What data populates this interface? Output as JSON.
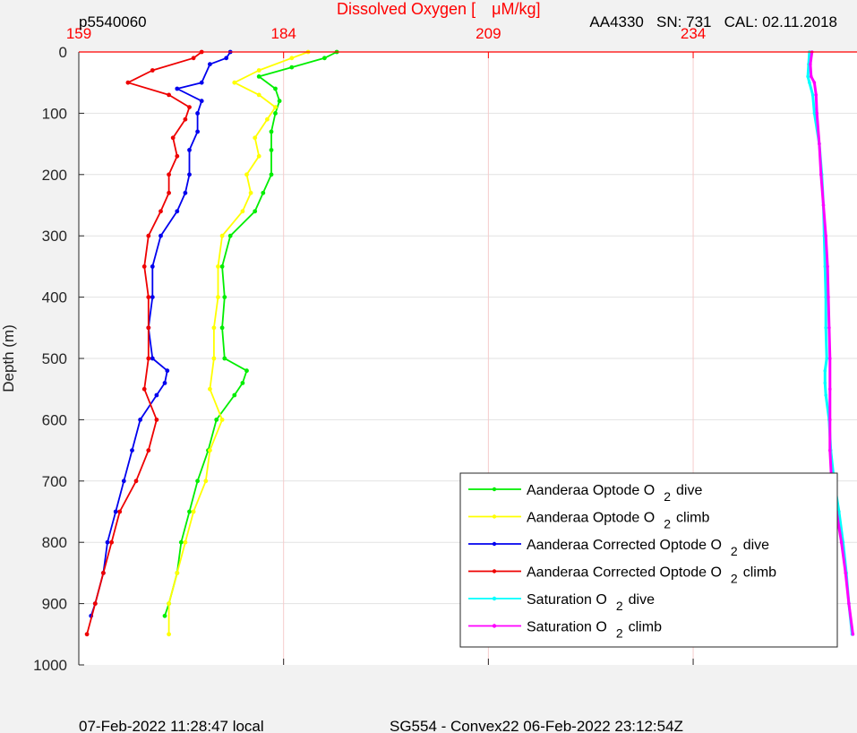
{
  "header": {
    "left_id": "p5540060",
    "title_prefix": "Dissolved Oxygen [",
    "title_units": "μM/kg]",
    "right_info": "AA4330   SN: 731   CAL: 02.11.2018"
  },
  "footer": {
    "left": "07-Feb-2022 11:28:47 local",
    "center": "SG554 - Convex22 06-Feb-2022 23:12:54Z"
  },
  "colors": {
    "oxygen_dive": "#00ee00",
    "oxygen_climb": "#ffff00",
    "corrected_dive": "#0000ee",
    "corrected_climb": "#ee0000",
    "saturation_dive": "#00ffff",
    "saturation_climb": "#ff00ff",
    "top_axis": "#ff0000"
  },
  "chart_data": {
    "type": "line",
    "ylabel": "Depth (m)",
    "y_reversed": true,
    "ylim": [
      0,
      1000
    ],
    "xlim": [
      159,
      254
    ],
    "x_ticks": [
      159,
      184,
      209,
      234
    ],
    "y_ticks": [
      0,
      100,
      200,
      300,
      400,
      500,
      600,
      700,
      800,
      900,
      1000
    ],
    "grid": true,
    "legend_position": "bottom-right",
    "series": [
      {
        "name": "Aanderaa Optode O2 dive",
        "legend_main": "Aanderaa Optode O",
        "legend_sub": "2",
        "legend_tail": "dive",
        "color": "#00ee00",
        "depth": [
          0,
          10,
          25,
          40,
          60,
          80,
          100,
          130,
          160,
          200,
          230,
          260,
          300,
          350,
          400,
          450,
          500,
          520,
          540,
          560,
          600,
          650,
          700,
          750,
          800,
          850,
          900,
          920
        ],
        "values": [
          190.5,
          189,
          185,
          181,
          183,
          183.5,
          183,
          182.5,
          182.5,
          182.5,
          181.5,
          180.5,
          177.5,
          176.5,
          176.8,
          176.5,
          176.8,
          179.5,
          179,
          178,
          175.8,
          174.8,
          173.5,
          172.5,
          171.5,
          171,
          170,
          169.5
        ]
      },
      {
        "name": "Aanderaa Optode O2 climb",
        "legend_main": "Aanderaa Optode O",
        "legend_sub": "2",
        "legend_tail": "climb",
        "color": "#ffff00",
        "depth": [
          0,
          10,
          30,
          50,
          70,
          90,
          110,
          140,
          170,
          200,
          230,
          260,
          300,
          350,
          400,
          450,
          500,
          550,
          600,
          650,
          700,
          750,
          800,
          850,
          900,
          950
        ],
        "values": [
          187,
          185,
          181,
          178,
          181,
          183,
          182,
          180.5,
          181,
          179.5,
          180,
          179,
          176.5,
          176,
          176,
          175.5,
          175.5,
          175,
          176.5,
          175,
          174.5,
          173,
          172,
          171,
          170,
          170
        ]
      },
      {
        "name": "Aanderaa Corrected Optode O2 dive",
        "legend_main": "Aanderaa Corrected Optode O",
        "legend_sub": "2",
        "legend_tail": "dive",
        "color": "#0000ee",
        "depth": [
          0,
          10,
          20,
          50,
          60,
          80,
          100,
          130,
          160,
          200,
          230,
          260,
          300,
          350,
          400,
          450,
          500,
          520,
          540,
          560,
          600,
          650,
          700,
          750,
          800,
          850,
          900,
          920
        ],
        "values": [
          177.5,
          177,
          175,
          174,
          171,
          174,
          173.5,
          173.5,
          172.5,
          172.5,
          172,
          171,
          169,
          168,
          168,
          167.5,
          168,
          169.8,
          169.5,
          168.5,
          166.5,
          165.5,
          164.5,
          163.5,
          162.5,
          162,
          161,
          160.5
        ]
      },
      {
        "name": "Aanderaa Corrected Optode O2 climb",
        "legend_main": "Aanderaa Corrected Optode O",
        "legend_sub": "2",
        "legend_tail": "climb",
        "color": "#ee0000",
        "depth": [
          0,
          10,
          30,
          50,
          70,
          90,
          110,
          140,
          170,
          200,
          230,
          260,
          300,
          350,
          400,
          450,
          500,
          550,
          600,
          650,
          700,
          750,
          800,
          850,
          900,
          950
        ],
        "values": [
          174,
          173,
          168,
          165,
          170,
          172.5,
          172,
          170.5,
          171,
          170,
          170,
          169,
          167.5,
          167,
          167.5,
          167.5,
          167.5,
          167,
          168.5,
          167.5,
          166,
          164,
          163,
          162,
          161,
          160
        ]
      },
      {
        "name": "Saturation O2 dive",
        "legend_main": "Saturation O",
        "legend_sub": "2",
        "legend_tail": "dive",
        "color": "#00ffff",
        "depth": [
          0,
          20,
          40,
          50,
          70,
          100,
          150,
          200,
          250,
          300,
          350,
          400,
          450,
          500,
          520,
          540,
          560,
          600,
          650,
          700,
          750,
          800,
          850,
          900,
          950
        ],
        "values": [
          248.2,
          248.1,
          248.0,
          248.2,
          248.6,
          248.8,
          249.4,
          249.7,
          249.9,
          250.0,
          250.1,
          250.2,
          250.2,
          250.3,
          250.1,
          250.1,
          250.2,
          250.6,
          250.8,
          251.2,
          251.8,
          252.3,
          252.7,
          253.0,
          253.4
        ]
      },
      {
        "name": "Saturation O2 climb",
        "legend_main": "Saturation O",
        "legend_sub": "2",
        "legend_tail": "climb",
        "color": "#ff00ff",
        "depth": [
          0,
          20,
          40,
          50,
          70,
          100,
          150,
          200,
          250,
          300,
          350,
          400,
          450,
          500,
          550,
          600,
          650,
          700,
          750,
          800,
          850,
          900,
          950
        ],
        "values": [
          248.5,
          248.3,
          248.4,
          248.8,
          249.0,
          249.1,
          249.4,
          249.6,
          249.9,
          250.2,
          250.4,
          250.5,
          250.6,
          250.7,
          250.7,
          250.7,
          250.7,
          250.9,
          251.5,
          252.1,
          252.6,
          253.0,
          253.5
        ]
      }
    ]
  }
}
